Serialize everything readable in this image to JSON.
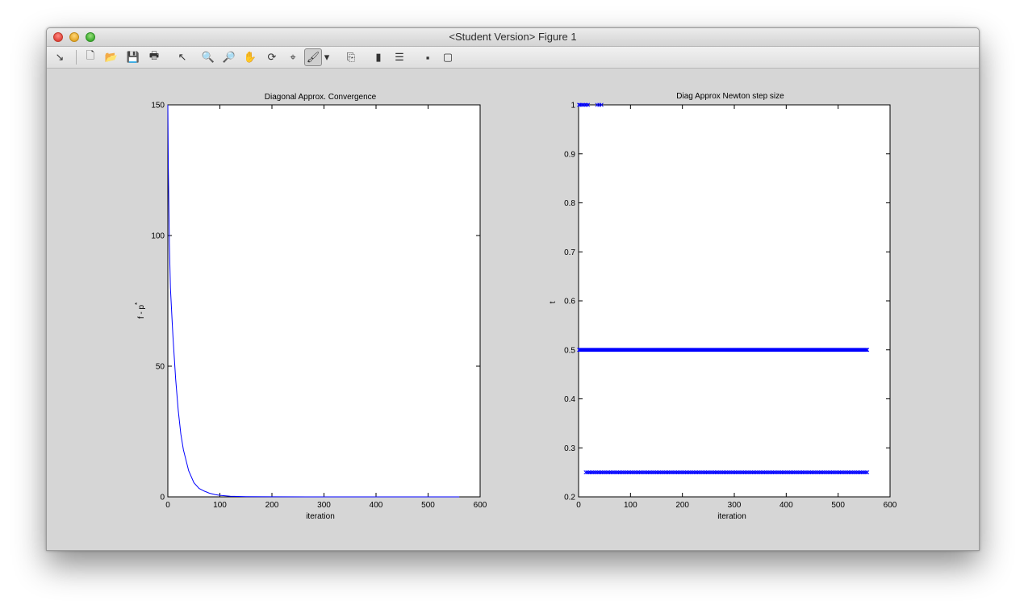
{
  "window": {
    "title": "<Student Version> Figure 1"
  },
  "toolbar": {
    "items": [
      {
        "name": "dock-figure-icon",
        "glyph": "↘"
      },
      {
        "name": "new-figure-icon",
        "glyph": "🗋"
      },
      {
        "name": "open-file-icon",
        "glyph": "📂"
      },
      {
        "name": "save-figure-icon",
        "glyph": "💾"
      },
      {
        "name": "print-figure-icon",
        "glyph": "🖶"
      },
      {
        "name": "edit-plot-icon",
        "glyph": "↖"
      },
      {
        "name": "zoom-in-icon",
        "glyph": "🔍"
      },
      {
        "name": "zoom-out-icon",
        "glyph": "🔎"
      },
      {
        "name": "pan-icon",
        "glyph": "✋"
      },
      {
        "name": "rotate-3d-icon",
        "glyph": "⟳"
      },
      {
        "name": "data-cursor-icon",
        "glyph": "⌖"
      },
      {
        "name": "brush-icon",
        "glyph": "🖌"
      },
      {
        "name": "brush-dropdown-icon",
        "glyph": "▾"
      },
      {
        "name": "link-plot-icon",
        "glyph": "⎘"
      },
      {
        "name": "colorbar-icon",
        "glyph": "▮"
      },
      {
        "name": "legend-icon",
        "glyph": "☰"
      },
      {
        "name": "hide-plot-tools-icon",
        "glyph": "▪"
      },
      {
        "name": "show-plot-tools-icon",
        "glyph": "▢"
      }
    ]
  },
  "chart_data": [
    {
      "type": "line",
      "title": "Diagonal Approx. Convergence",
      "xlabel": "iteration",
      "ylabel": "f - p*",
      "xlim": [
        0,
        600
      ],
      "ylim": [
        0,
        150
      ],
      "xticks": [
        "0",
        "100",
        "200",
        "300",
        "400",
        "500",
        "600"
      ],
      "yticks": [
        "0",
        "50",
        "100",
        "150"
      ],
      "color": "#0000ff",
      "series": [
        {
          "x": [
            0,
            1,
            2,
            3,
            5,
            8,
            10,
            15,
            20,
            25,
            30,
            40,
            50,
            60,
            70,
            80,
            90,
            100,
            120,
            150,
            200,
            300,
            400,
            500,
            560
          ],
          "values": [
            150,
            126,
            110,
            97,
            80,
            68,
            61,
            45,
            33,
            24,
            18,
            10,
            5.4,
            3.2,
            2.2,
            1.4,
            0.9,
            0.6,
            0.25,
            0.1,
            0.03,
            0.01,
            0,
            0,
            0
          ]
        }
      ]
    },
    {
      "type": "scatter",
      "title": "Diag Approx Newton step size",
      "xlabel": "iteration",
      "ylabel": "t",
      "xlim": [
        0,
        600
      ],
      "ylim": [
        0.2,
        1
      ],
      "xticks": [
        "0",
        "100",
        "200",
        "300",
        "400",
        "500",
        "600"
      ],
      "yticks": [
        "0.2",
        "0.3",
        "0.4",
        "0.5",
        "0.6",
        "0.7",
        "0.8",
        "0.9",
        "1"
      ],
      "marker": "x",
      "color": "#0000ff",
      "series": [
        {
          "y": 1,
          "x": [
            1,
            3,
            6,
            9,
            12,
            15,
            18,
            36,
            40,
            44
          ]
        },
        {
          "y": 0.5,
          "x_range": [
            1,
            556
          ],
          "approx_points": 360
        },
        {
          "y": 0.25,
          "x_range": [
            14,
            556
          ],
          "approx_points": 190
        }
      ]
    }
  ]
}
